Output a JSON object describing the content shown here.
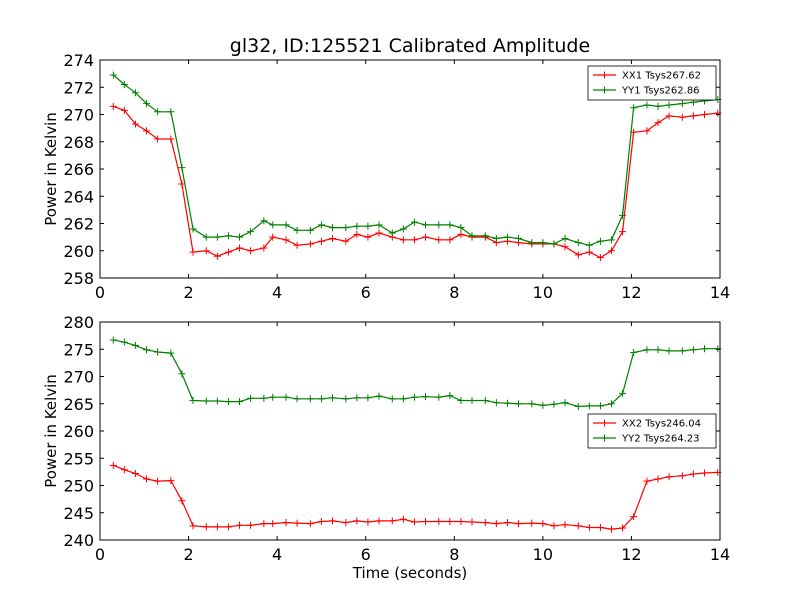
{
  "figure": {
    "title": "gl32, ID:125521 Calibrated Amplitude",
    "xlabel": "Time (seconds)"
  },
  "chart_data": [
    {
      "type": "line",
      "title": "gl32, ID:125521 Calibrated Amplitude",
      "xlabel": "",
      "ylabel": "Power in Kelvin",
      "xlim": [
        0,
        14
      ],
      "ylim": [
        258,
        274
      ],
      "xticks": [
        0,
        2,
        4,
        6,
        8,
        10,
        12,
        14
      ],
      "yticks": [
        258,
        260,
        262,
        264,
        266,
        268,
        270,
        272,
        274
      ],
      "legend_position": "top-right",
      "grid": false,
      "x": [
        0.3,
        0.55,
        0.8,
        1.05,
        1.3,
        1.6,
        1.85,
        2.1,
        2.4,
        2.65,
        2.9,
        3.15,
        3.4,
        3.7,
        3.9,
        4.2,
        4.45,
        4.75,
        5.0,
        5.25,
        5.55,
        5.8,
        6.05,
        6.3,
        6.6,
        6.85,
        7.1,
        7.35,
        7.65,
        7.9,
        8.15,
        8.4,
        8.7,
        8.95,
        9.2,
        9.45,
        9.75,
        10.0,
        10.25,
        10.5,
        10.8,
        11.05,
        11.3,
        11.55,
        11.8,
        12.05,
        12.35,
        12.6,
        12.85,
        13.15,
        13.4,
        13.65,
        13.95
      ],
      "series": [
        {
          "name": "XX1 Tsys267.62",
          "color": "#ff0000",
          "values": [
            270.6,
            270.3,
            269.3,
            268.8,
            268.2,
            268.2,
            264.9,
            259.9,
            260.0,
            259.6,
            259.9,
            260.2,
            260.0,
            260.2,
            261.0,
            260.8,
            260.4,
            260.5,
            260.7,
            260.9,
            260.7,
            261.2,
            261.0,
            261.3,
            261.0,
            260.8,
            260.8,
            261.0,
            260.8,
            260.8,
            261.2,
            261.0,
            261.0,
            260.6,
            260.7,
            260.6,
            260.5,
            260.5,
            260.5,
            260.3,
            259.7,
            259.9,
            259.5,
            260.0,
            261.4,
            268.7,
            268.8,
            269.4,
            269.9,
            269.8,
            269.9,
            270.0,
            270.1
          ]
        },
        {
          "name": "YY1 Tsys262.86",
          "color": "#008000",
          "values": [
            272.9,
            272.2,
            271.6,
            270.8,
            270.2,
            270.2,
            266.1,
            261.6,
            261.0,
            261.0,
            261.1,
            261.0,
            261.4,
            262.2,
            261.9,
            261.9,
            261.5,
            261.5,
            261.9,
            261.7,
            261.7,
            261.8,
            261.8,
            261.9,
            261.3,
            261.6,
            262.1,
            261.9,
            261.9,
            261.9,
            261.7,
            261.1,
            261.1,
            260.9,
            261.0,
            260.9,
            260.6,
            260.6,
            260.5,
            260.9,
            260.6,
            260.4,
            260.7,
            260.8,
            262.6,
            270.5,
            270.7,
            270.6,
            270.7,
            270.8,
            270.9,
            271.0,
            271.1
          ]
        }
      ]
    },
    {
      "type": "line",
      "title": "",
      "xlabel": "Time (seconds)",
      "ylabel": "Power in Kelvin",
      "xlim": [
        0,
        14
      ],
      "ylim": [
        240,
        280
      ],
      "xticks": [
        0,
        2,
        4,
        6,
        8,
        10,
        12,
        14
      ],
      "yticks": [
        240,
        245,
        250,
        255,
        260,
        265,
        270,
        275,
        280
      ],
      "legend_position": "center-right",
      "grid": false,
      "x": [
        0.3,
        0.55,
        0.8,
        1.05,
        1.3,
        1.6,
        1.85,
        2.1,
        2.4,
        2.65,
        2.9,
        3.15,
        3.4,
        3.7,
        3.9,
        4.2,
        4.45,
        4.75,
        5.0,
        5.25,
        5.55,
        5.8,
        6.05,
        6.3,
        6.6,
        6.85,
        7.1,
        7.35,
        7.65,
        7.9,
        8.15,
        8.4,
        8.7,
        8.95,
        9.2,
        9.45,
        9.75,
        10.0,
        10.25,
        10.5,
        10.8,
        11.05,
        11.3,
        11.55,
        11.8,
        12.05,
        12.35,
        12.6,
        12.85,
        13.15,
        13.4,
        13.65,
        13.95
      ],
      "series": [
        {
          "name": "XX2 Tsys246.04",
          "color": "#ff0000",
          "values": [
            253.7,
            252.9,
            252.2,
            251.2,
            250.8,
            250.9,
            247.2,
            242.6,
            242.4,
            242.4,
            242.4,
            242.7,
            242.7,
            243.0,
            243.0,
            243.2,
            243.1,
            243.0,
            243.4,
            243.5,
            243.2,
            243.5,
            243.3,
            243.5,
            243.5,
            243.8,
            243.3,
            243.4,
            243.4,
            243.4,
            243.4,
            243.3,
            243.2,
            243.0,
            243.2,
            243.0,
            243.1,
            243.0,
            242.6,
            242.8,
            242.6,
            242.3,
            242.3,
            242.0,
            242.2,
            244.3,
            250.8,
            251.2,
            251.6,
            251.8,
            252.1,
            252.3,
            252.4
          ]
        },
        {
          "name": "YY2 Tsys264.23",
          "color": "#008000",
          "values": [
            276.7,
            276.3,
            275.7,
            274.9,
            274.5,
            274.3,
            270.5,
            265.6,
            265.5,
            265.5,
            265.4,
            265.4,
            266.0,
            266.0,
            266.2,
            266.2,
            265.9,
            265.9,
            265.9,
            266.1,
            265.9,
            266.1,
            266.1,
            266.4,
            265.9,
            265.9,
            266.2,
            266.3,
            266.2,
            266.5,
            265.6,
            265.6,
            265.6,
            265.2,
            265.1,
            265.0,
            265.0,
            264.7,
            264.9,
            265.2,
            264.5,
            264.6,
            264.6,
            265.0,
            266.9,
            274.4,
            274.9,
            274.9,
            274.7,
            274.7,
            274.9,
            275.1,
            275.1
          ]
        }
      ]
    }
  ]
}
